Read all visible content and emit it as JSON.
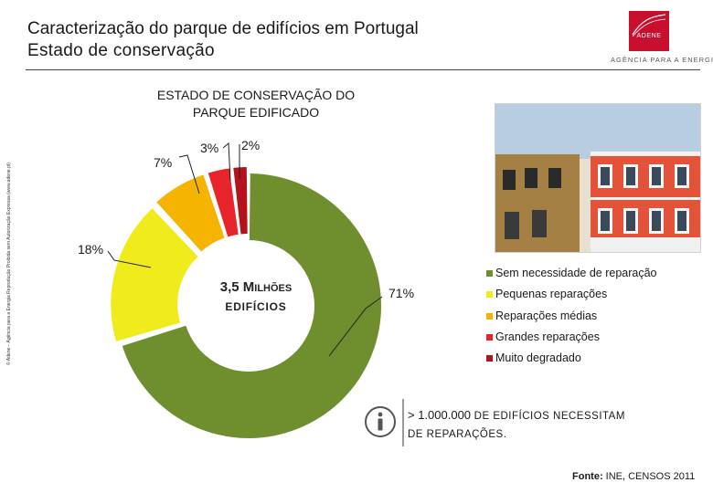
{
  "header": {
    "title": "Caracterização do parque de edifícios em Portugal",
    "subtitle": "Estado de conservação"
  },
  "logo": {
    "word": "ADENE",
    "tagline": "AGÊNCIA PARA A ENERGIA"
  },
  "side_note": "© Adene – Agência para a Energia  Reprodução Proibida sem Autorização Expressa (www.adene.pt)",
  "colors": {
    "green": "#6f8f2e",
    "yellow": "#f0ec1c",
    "orange": "#f4b400",
    "red": "#e8242b",
    "dark_red": "#b5121b",
    "brand": "#c8102e"
  },
  "chart_data": {
    "type": "pie",
    "variant": "donut",
    "title": "ESTADO DE CONSERVAÇÃO DO PARQUE EDIFICADO",
    "title_line1": "ESTADO DE CONSERVAÇÃO DO",
    "title_line2": "PARQUE EDIFICADO",
    "center_main_lead": "3,5 M",
    "center_main_tail": "ILHÕES",
    "center_sub": "EDIFÍCIOS",
    "categories": [
      "Sem necessidade de reparação",
      "Pequenas reparações",
      "Reparações médias",
      "Grandes reparações",
      "Muito degradado"
    ],
    "values": [
      71,
      18,
      7,
      3,
      2
    ],
    "value_labels": [
      "71%",
      "18%",
      "7%",
      "3%",
      "2%"
    ],
    "legend_position": "right"
  },
  "callout": {
    "prefix": "> 1.000.000 ",
    "line1_rest": "DE EDIFÍCIOS NECESSITAM",
    "line2": "DE REPARAÇÕES."
  },
  "source": {
    "label": "Fonte:",
    "text": " INE, CENSOS 2011"
  }
}
